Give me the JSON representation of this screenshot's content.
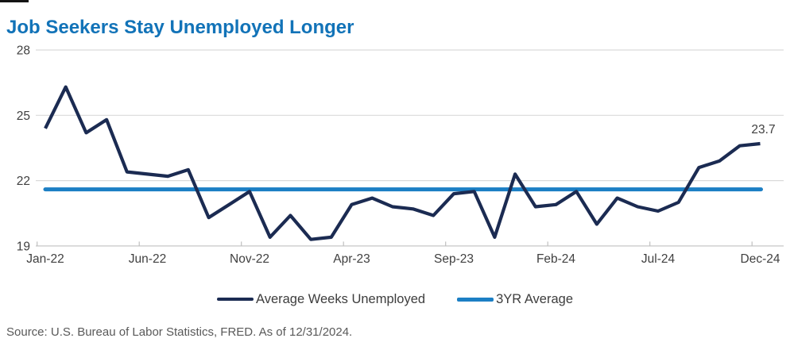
{
  "title": "Job Seekers Stay Unemployed Longer",
  "source_note": "Source: U.S. Bureau of Labor Statistics, FRED. As of 12/31/2024.",
  "end_label": "23.7",
  "colors": {
    "title": "#1273b8",
    "series": "#1b2b52",
    "average": "#1c7fc4",
    "grid": "#d9d9d9",
    "axis": "#c0c0c0",
    "tick_label": "#404040",
    "legend_label": "#3d3d3d",
    "source": "#595959"
  },
  "legend": [
    {
      "label": "Average Weeks Unemployed",
      "color": "#1b2b52"
    },
    {
      "label": "3YR Average",
      "color": "#1c7fc4"
    }
  ],
  "chart_data": {
    "type": "line",
    "title": "Job Seekers Stay Unemployed Longer",
    "x": [
      "Jan-22",
      "Feb-22",
      "Mar-22",
      "Apr-22",
      "May-22",
      "Jun-22",
      "Jul-22",
      "Aug-22",
      "Sep-22",
      "Oct-22",
      "Nov-22",
      "Dec-22",
      "Jan-23",
      "Feb-23",
      "Mar-23",
      "Apr-23",
      "May-23",
      "Jun-23",
      "Jul-23",
      "Aug-23",
      "Sep-23",
      "Oct-23",
      "Nov-23",
      "Dec-23",
      "Jan-24",
      "Feb-24",
      "Mar-24",
      "Apr-24",
      "May-24",
      "Jun-24",
      "Jul-24",
      "Aug-24",
      "Sep-24",
      "Oct-24",
      "Nov-24",
      "Dec-24"
    ],
    "series": [
      {
        "name": "Average Weeks Unemployed",
        "values": [
          24.4,
          26.3,
          24.2,
          24.8,
          22.4,
          22.3,
          22.2,
          22.5,
          20.3,
          20.9,
          21.5,
          19.4,
          20.4,
          19.3,
          19.4,
          20.9,
          21.2,
          20.8,
          20.7,
          20.4,
          21.4,
          21.5,
          19.4,
          22.3,
          20.8,
          20.9,
          21.5,
          20.0,
          21.2,
          20.8,
          20.6,
          21.0,
          22.6,
          22.9,
          23.6,
          23.7
        ]
      },
      {
        "name": "3YR Average",
        "value": 21.6
      }
    ],
    "x_tick_labels": [
      "Jan-22",
      "Jun-22",
      "Nov-22",
      "Apr-23",
      "Sep-23",
      "Feb-24",
      "Jul-24",
      "Dec-24"
    ],
    "y_ticks": [
      19,
      22,
      25,
      28
    ],
    "ylim": [
      19,
      28
    ],
    "grid": "horizontal",
    "legend_position": "bottom",
    "last_point_label": "23.7"
  }
}
